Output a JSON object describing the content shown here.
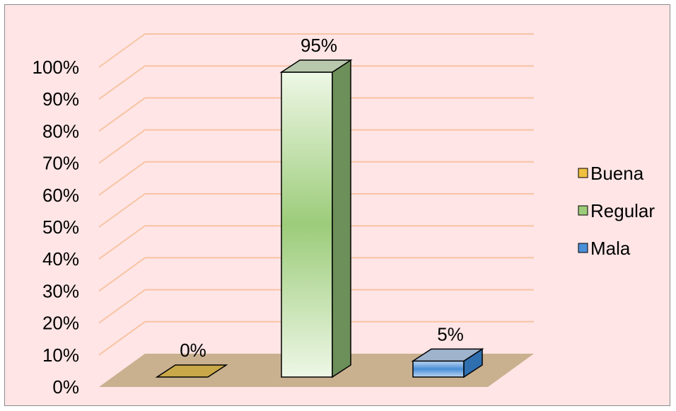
{
  "chart_data": {
    "type": "bar",
    "style": "3d-column",
    "categories": [
      "Buena",
      "Regular",
      "Mala"
    ],
    "values": [
      0,
      95,
      5
    ],
    "value_suffix": "%",
    "data_labels": [
      "0%",
      "95%",
      "5%"
    ],
    "title": "",
    "xlabel": "",
    "ylabel": "",
    "ylim": [
      0,
      100
    ],
    "yticks": [
      "0%",
      "10%",
      "20%",
      "30%",
      "40%",
      "50%",
      "60%",
      "70%",
      "80%",
      "90%",
      "100%"
    ],
    "grid": true,
    "legend": {
      "position": "right",
      "entries": [
        "Buena",
        "Regular",
        "Mala"
      ]
    },
    "colors": {
      "Buena": "#f0c040",
      "Regular": "#9ccc7a",
      "Mala": "#4a8fd8",
      "background": "#ffe5e5",
      "gridlines": "#f7c4a5",
      "floor": "#c9b08f"
    }
  }
}
